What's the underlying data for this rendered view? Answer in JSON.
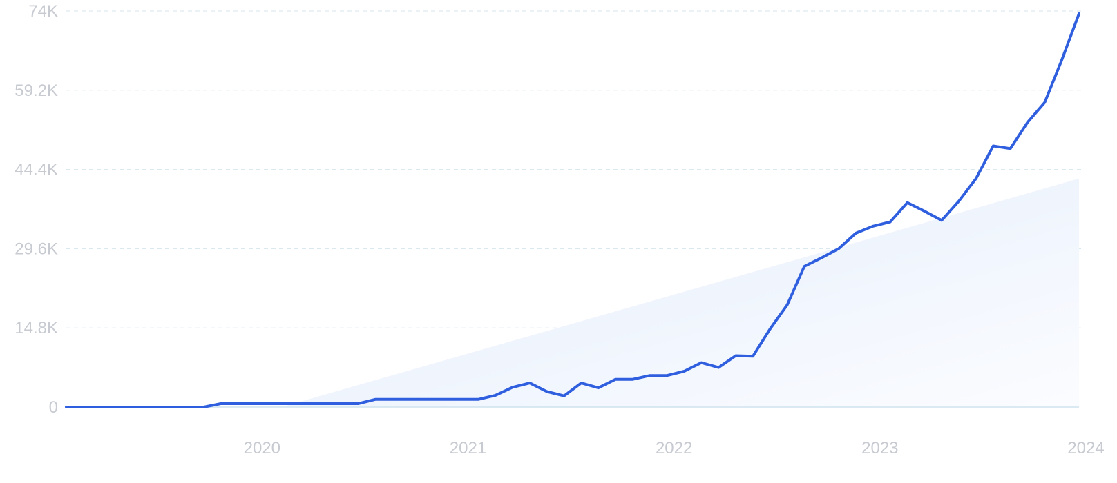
{
  "chart_data": {
    "type": "line",
    "title": "",
    "xlabel": "",
    "ylabel": "",
    "x_tick_labels": [
      "2020",
      "2021",
      "2022",
      "2023",
      "2024"
    ],
    "y_tick_labels": [
      "0",
      "14.8K",
      "29.6K",
      "44.4K",
      "59.2K",
      "74K"
    ],
    "y_ticks": [
      0,
      14800,
      29600,
      44400,
      59200,
      74000
    ],
    "ylim": [
      0,
      74000
    ],
    "xlim": [
      "2019-07",
      "2024-06"
    ],
    "grid": true,
    "legend": "none",
    "colors": {
      "line": "#2f5fde",
      "trend_fill": "#e6effb",
      "grid": "#d5e6ee",
      "baseline": "#cfe3ee",
      "tick_label": "#c7cbd1"
    },
    "series": [
      {
        "x": [
          "2019-07",
          "2019-08",
          "2019-09",
          "2019-10",
          "2019-11",
          "2019-12",
          "2020-01",
          "2020-02",
          "2020-03",
          "2020-04",
          "2020-05",
          "2020-06",
          "2020-07",
          "2020-08",
          "2020-09",
          "2020-10",
          "2020-11",
          "2020-12",
          "2021-01",
          "2021-02",
          "2021-03",
          "2021-04",
          "2021-05",
          "2021-06",
          "2021-07",
          "2021-08",
          "2021-09",
          "2021-10",
          "2021-11",
          "2021-12",
          "2022-01",
          "2022-02",
          "2022-03",
          "2022-04",
          "2022-05",
          "2022-06",
          "2022-07",
          "2022-08",
          "2022-09",
          "2022-10",
          "2022-11",
          "2022-12",
          "2023-01",
          "2023-02",
          "2023-03",
          "2023-04",
          "2023-05",
          "2023-06",
          "2023-07",
          "2023-08",
          "2023-09",
          "2023-10",
          "2023-11",
          "2023-12",
          "2024-01",
          "2024-02",
          "2024-03",
          "2024-04",
          "2024-05",
          "2024-06"
        ],
        "values": [
          0,
          0,
          0,
          0,
          0,
          0,
          0,
          0,
          0,
          650,
          650,
          650,
          650,
          650,
          650,
          650,
          650,
          650,
          1450,
          1450,
          1450,
          1450,
          1450,
          1450,
          1450,
          2200,
          3700,
          4500,
          2900,
          2100,
          4500,
          3600,
          5200,
          5200,
          5900,
          5900,
          6700,
          8300,
          7400,
          9600,
          9500,
          14600,
          19100,
          26300,
          27900,
          29600,
          32500,
          33800,
          34600,
          38200,
          36600,
          34900,
          38500,
          42700,
          48800,
          48300,
          53200,
          56900,
          64900,
          73500
        ]
      }
    ],
    "trend": {
      "values_at_xlim": [
        -11500,
        42700
      ]
    }
  }
}
